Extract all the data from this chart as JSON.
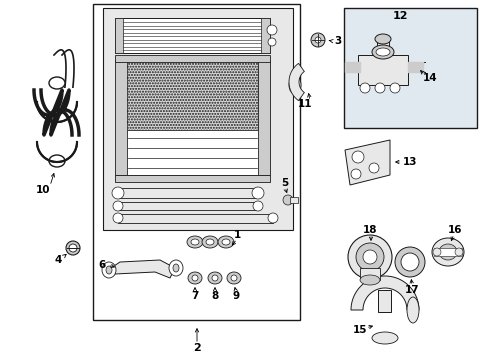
{
  "bg_color": "#ffffff",
  "line_color": "#1a1a1a",
  "gray_light": "#e8e8e8",
  "gray_med": "#cccccc",
  "gray_dark": "#999999",
  "box12_fill": "#e0e8f0"
}
